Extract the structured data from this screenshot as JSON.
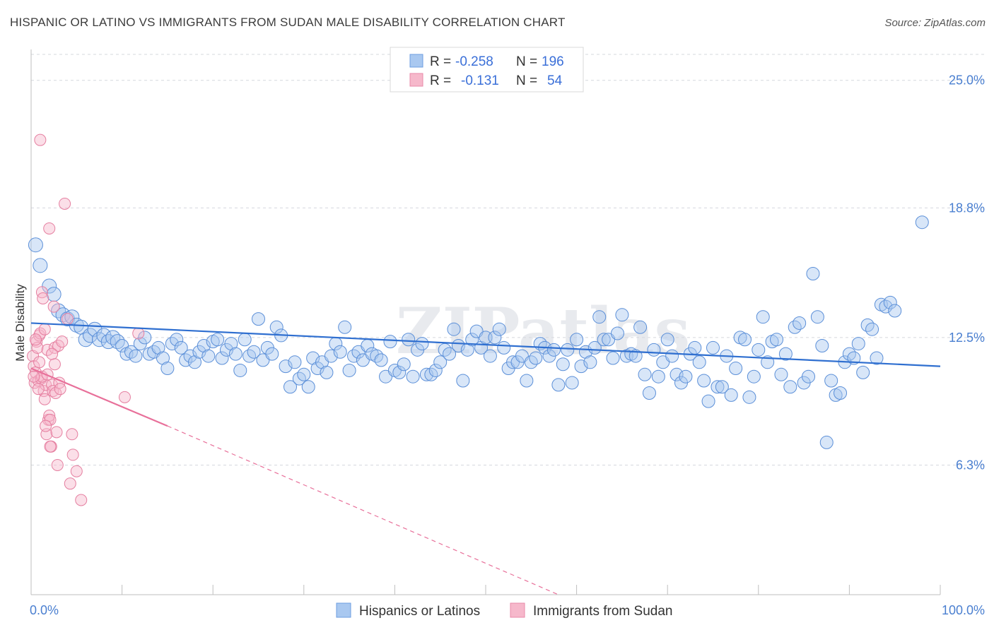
{
  "title": "HISPANIC OR LATINO VS IMMIGRANTS FROM SUDAN MALE DISABILITY CORRELATION CHART",
  "source": "Source: ZipAtlas.com",
  "watermark": "ZIPatlas",
  "legend": {
    "rows": [
      {
        "r_label": "R =",
        "r_value": "-0.258",
        "n_label": "N =",
        "n_value": "196",
        "color": "#a9c8f0",
        "stroke": "#6d9ee0"
      },
      {
        "r_label": "R =",
        "r_value": "-0.131",
        "n_label": "N =",
        "n_value": "54",
        "color": "#f6b8cb",
        "stroke": "#e88aa8"
      }
    ]
  },
  "bottom_legend": [
    {
      "label": "Hispanics or Latinos",
      "color": "#a9c8f0",
      "stroke": "#6d9ee0"
    },
    {
      "label": "Immigrants from Sudan",
      "color": "#f6b8cb",
      "stroke": "#e88aa8"
    }
  ],
  "chart_data": {
    "type": "scatter",
    "ylabel": "Male Disability",
    "x_min_label": "0.0%",
    "x_max_label": "100.0%",
    "xlim": [
      0,
      100
    ],
    "ylim": [
      0,
      26.5
    ],
    "y_ticks": [
      {
        "value": 25.0,
        "label": "25.0%"
      },
      {
        "value": 18.8,
        "label": "18.8%"
      },
      {
        "value": 12.5,
        "label": "12.5%"
      },
      {
        "value": 6.3,
        "label": "6.3%"
      }
    ],
    "series": [
      {
        "name": "Hispanics or Latinos",
        "color": "#a9c8f0",
        "stroke": "#5b8fd8",
        "trend": {
          "x1": 0,
          "y1": 13.2,
          "x2": 100,
          "y2": 11.1,
          "color": "#2f6fd0"
        },
        "points": [
          [
            0.5,
            17.0
          ],
          [
            1,
            16.0
          ],
          [
            2,
            15.0
          ],
          [
            2.5,
            14.6
          ],
          [
            3,
            13.8
          ],
          [
            3.5,
            13.6
          ],
          [
            4,
            13.4
          ],
          [
            4.5,
            13.5
          ],
          [
            5,
            13.1
          ],
          [
            5.5,
            13.0
          ],
          [
            6,
            12.4
          ],
          [
            6.5,
            12.6
          ],
          [
            7,
            12.9
          ],
          [
            7.5,
            12.4
          ],
          [
            8,
            12.6
          ],
          [
            8.5,
            12.3
          ],
          [
            9,
            12.5
          ],
          [
            9.5,
            12.3
          ],
          [
            10,
            12.1
          ],
          [
            10.5,
            11.7
          ],
          [
            11,
            11.8
          ],
          [
            11.5,
            11.6
          ],
          [
            12,
            12.2
          ],
          [
            12.5,
            12.5
          ],
          [
            13,
            11.7
          ],
          [
            13.5,
            11.8
          ],
          [
            14,
            12.0
          ],
          [
            14.5,
            11.5
          ],
          [
            15,
            11.0
          ],
          [
            15.5,
            12.2
          ],
          [
            16,
            12.4
          ],
          [
            16.5,
            12.0
          ],
          [
            17,
            11.4
          ],
          [
            17.5,
            11.6
          ],
          [
            18,
            11.3
          ],
          [
            18.5,
            11.8
          ],
          [
            19,
            12.1
          ],
          [
            19.5,
            11.6
          ],
          [
            20,
            12.3
          ],
          [
            20.5,
            12.4
          ],
          [
            21,
            11.5
          ],
          [
            21.5,
            11.9
          ],
          [
            22,
            12.2
          ],
          [
            22.5,
            11.7
          ],
          [
            23,
            10.9
          ],
          [
            23.5,
            12.4
          ],
          [
            24,
            11.6
          ],
          [
            24.5,
            11.8
          ],
          [
            25,
            13.4
          ],
          [
            25.5,
            11.4
          ],
          [
            26,
            12.0
          ],
          [
            26.5,
            11.7
          ],
          [
            27,
            13.0
          ],
          [
            27.5,
            12.6
          ],
          [
            28,
            11.1
          ],
          [
            28.5,
            10.1
          ],
          [
            29,
            11.3
          ],
          [
            29.5,
            10.5
          ],
          [
            30,
            10.7
          ],
          [
            30.5,
            10.1
          ],
          [
            31,
            11.5
          ],
          [
            31.5,
            11.0
          ],
          [
            32,
            11.3
          ],
          [
            32.5,
            10.8
          ],
          [
            33,
            11.6
          ],
          [
            33.5,
            12.2
          ],
          [
            34,
            11.8
          ],
          [
            34.5,
            13.0
          ],
          [
            35,
            10.9
          ],
          [
            35.5,
            11.6
          ],
          [
            36,
            11.8
          ],
          [
            36.5,
            11.4
          ],
          [
            37,
            12.1
          ],
          [
            37.5,
            11.7
          ],
          [
            38,
            11.6
          ],
          [
            38.5,
            11.4
          ],
          [
            39,
            10.6
          ],
          [
            39.5,
            12.3
          ],
          [
            40,
            10.9
          ],
          [
            40.5,
            10.8
          ],
          [
            41,
            11.2
          ],
          [
            41.5,
            12.4
          ],
          [
            42,
            10.6
          ],
          [
            42.5,
            11.9
          ],
          [
            43,
            12.2
          ],
          [
            43.5,
            10.7
          ],
          [
            44,
            10.7
          ],
          [
            44.5,
            10.9
          ],
          [
            45,
            11.3
          ],
          [
            45.5,
            11.9
          ],
          [
            46,
            11.7
          ],
          [
            46.5,
            12.9
          ],
          [
            47,
            12.1
          ],
          [
            47.5,
            10.4
          ],
          [
            48,
            11.9
          ],
          [
            48.5,
            12.4
          ],
          [
            49,
            12.8
          ],
          [
            49.5,
            12.0
          ],
          [
            50,
            12.5
          ],
          [
            50.5,
            11.6
          ],
          [
            51,
            12.5
          ],
          [
            51.5,
            12.9
          ],
          [
            52,
            12.0
          ],
          [
            52.5,
            11.0
          ],
          [
            53,
            11.3
          ],
          [
            53.5,
            11.3
          ],
          [
            54,
            11.6
          ],
          [
            54.5,
            10.4
          ],
          [
            55,
            11.3
          ],
          [
            55.5,
            11.5
          ],
          [
            56,
            12.2
          ],
          [
            56.5,
            12.0
          ],
          [
            57,
            11.6
          ],
          [
            57.5,
            11.9
          ],
          [
            58,
            10.2
          ],
          [
            58.5,
            11.2
          ],
          [
            59,
            11.9
          ],
          [
            59.5,
            10.3
          ],
          [
            60,
            12.4
          ],
          [
            60.5,
            11.1
          ],
          [
            61,
            11.8
          ],
          [
            61.5,
            11.3
          ],
          [
            62,
            12.0
          ],
          [
            62.5,
            13.5
          ],
          [
            63,
            12.4
          ],
          [
            63.5,
            12.4
          ],
          [
            64,
            11.5
          ],
          [
            64.5,
            12.7
          ],
          [
            65,
            13.6
          ],
          [
            65.5,
            11.6
          ],
          [
            66,
            11.7
          ],
          [
            66.5,
            11.6
          ],
          [
            67,
            13.0
          ],
          [
            67.5,
            10.7
          ],
          [
            68,
            9.8
          ],
          [
            68.5,
            11.9
          ],
          [
            69,
            10.6
          ],
          [
            69.5,
            11.3
          ],
          [
            70,
            12.4
          ],
          [
            70.5,
            11.6
          ],
          [
            71,
            10.7
          ],
          [
            71.5,
            10.3
          ],
          [
            72,
            10.6
          ],
          [
            72.5,
            11.7
          ],
          [
            73,
            12.0
          ],
          [
            73.5,
            11.3
          ],
          [
            74,
            10.4
          ],
          [
            74.5,
            9.4
          ],
          [
            75,
            12.0
          ],
          [
            75.5,
            10.1
          ],
          [
            76,
            10.1
          ],
          [
            76.5,
            11.6
          ],
          [
            77,
            9.7
          ],
          [
            77.5,
            11.0
          ],
          [
            78,
            12.5
          ],
          [
            78.5,
            12.4
          ],
          [
            79,
            9.6
          ],
          [
            79.5,
            10.6
          ],
          [
            80,
            11.9
          ],
          [
            80.5,
            13.5
          ],
          [
            81,
            11.3
          ],
          [
            81.5,
            12.3
          ],
          [
            82,
            12.4
          ],
          [
            82.5,
            10.7
          ],
          [
            83,
            11.7
          ],
          [
            83.5,
            10.1
          ],
          [
            84,
            13.0
          ],
          [
            84.5,
            13.2
          ],
          [
            85,
            10.3
          ],
          [
            85.5,
            10.6
          ],
          [
            86,
            15.6
          ],
          [
            86.5,
            13.5
          ],
          [
            87,
            12.1
          ],
          [
            87.5,
            7.4
          ],
          [
            88,
            10.4
          ],
          [
            88.5,
            9.7
          ],
          [
            89,
            9.8
          ],
          [
            89.5,
            11.3
          ],
          [
            90,
            11.7
          ],
          [
            90.5,
            11.5
          ],
          [
            91,
            12.2
          ],
          [
            91.5,
            10.8
          ],
          [
            92,
            13.1
          ],
          [
            92.5,
            12.9
          ],
          [
            93,
            11.5
          ],
          [
            93.5,
            14.1
          ],
          [
            94,
            14.0
          ],
          [
            94.5,
            14.2
          ],
          [
            95,
            13.8
          ],
          [
            98,
            18.1
          ]
        ]
      },
      {
        "name": "Immigrants from Sudan",
        "color": "#f6b8cb",
        "stroke": "#e57fa0",
        "trend": {
          "x1": 0,
          "y1": 11.0,
          "x2": 15,
          "y2": 8.2,
          "dash_x2": 58,
          "dash_y2": 0,
          "color": "#e8709a"
        },
        "points": [
          [
            0.2,
            11.6
          ],
          [
            0.3,
            11.1
          ],
          [
            0.4,
            10.3
          ],
          [
            0.5,
            10.8
          ],
          [
            0.6,
            12.3
          ],
          [
            0.7,
            12.0
          ],
          [
            0.8,
            10.4
          ],
          [
            0.9,
            12.6
          ],
          [
            1.0,
            12.7
          ],
          [
            1.1,
            10.5
          ],
          [
            1.2,
            14.7
          ],
          [
            1.3,
            14.4
          ],
          [
            1.4,
            9.9
          ],
          [
            1.5,
            9.5
          ],
          [
            1.6,
            10.2
          ],
          [
            1.7,
            7.8
          ],
          [
            1.8,
            11.9
          ],
          [
            1.9,
            8.5
          ],
          [
            2.0,
            8.7
          ],
          [
            2.1,
            8.5
          ],
          [
            2.2,
            7.2
          ],
          [
            2.3,
            10.2
          ],
          [
            2.4,
            9.9
          ],
          [
            2.5,
            14.0
          ],
          [
            2.6,
            12.0
          ],
          [
            2.7,
            9.8
          ],
          [
            2.8,
            7.9
          ],
          [
            2.9,
            6.3
          ],
          [
            3.0,
            12.1
          ],
          [
            3.1,
            10.3
          ],
          [
            1.0,
            22.1
          ],
          [
            3.7,
            19.0
          ],
          [
            2.0,
            17.8
          ],
          [
            1.5,
            12.9
          ],
          [
            2.3,
            11.7
          ],
          [
            1.2,
            10.6
          ],
          [
            0.8,
            10.0
          ],
          [
            1.8,
            10.7
          ],
          [
            2.6,
            11.2
          ],
          [
            0.5,
            12.4
          ],
          [
            3.2,
            10.0
          ],
          [
            4.0,
            13.4
          ],
          [
            4.5,
            7.8
          ],
          [
            4.6,
            6.8
          ],
          [
            5.0,
            6.0
          ],
          [
            4.3,
            5.4
          ],
          [
            5.5,
            4.6
          ],
          [
            10.3,
            9.6
          ],
          [
            11.8,
            12.7
          ],
          [
            2.1,
            7.2
          ],
          [
            1.6,
            8.2
          ],
          [
            0.9,
            11.3
          ],
          [
            3.4,
            12.3
          ],
          [
            0.3,
            10.6
          ]
        ]
      }
    ]
  }
}
